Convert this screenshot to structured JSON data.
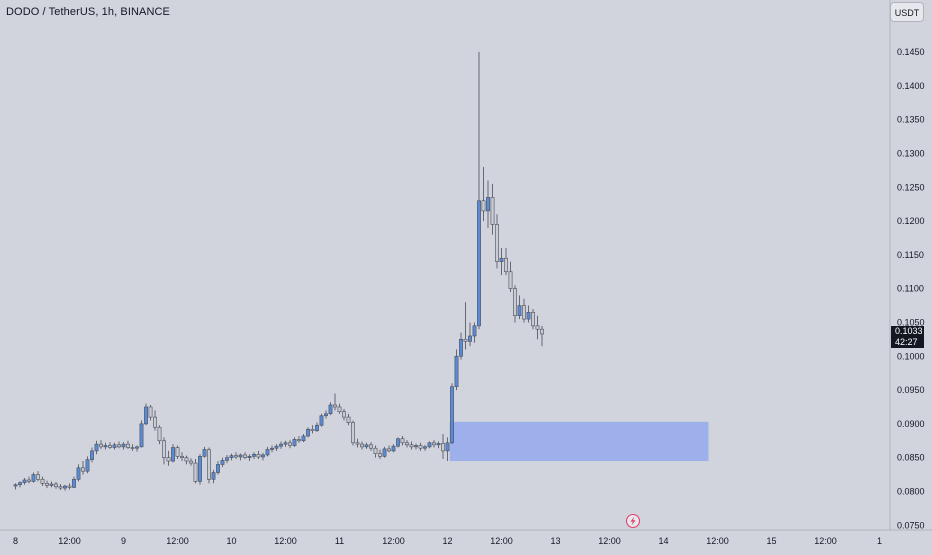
{
  "header": {
    "symbol_title": "DODO / TetherUS, 1h, BINANCE"
  },
  "price_scale": {
    "currency": "USDT"
  },
  "last_price": {
    "value": "0.1033",
    "countdown": "42:27"
  },
  "colors": {
    "background": "#d1d4dc",
    "up_candle": "#5b8ad6",
    "down_candle": "#c9ccd3",
    "wick": "#4a4e5a",
    "zone": "#97acec",
    "axis_text": "#131722"
  },
  "icons": {
    "bottom_marker": "lightning-bolt-icon"
  },
  "chart_data": {
    "type": "candlestick",
    "title": "DODO / TetherUS, 1h, BINANCE",
    "xlabel": "",
    "ylabel": "",
    "ylim": [
      0.0743,
      0.1527
    ],
    "grid": false,
    "y_ticks": [
      "0.0750",
      "0.0800",
      "0.0850",
      "0.0900",
      "0.0950",
      "0.1000",
      "0.1050",
      "0.1100",
      "0.1150",
      "0.1200",
      "0.1250",
      "0.1300",
      "0.1350",
      "0.1400",
      "0.1450"
    ],
    "x_ticks": [
      "8",
      "12:00",
      "9",
      "12:00",
      "10",
      "12:00",
      "11",
      "12:00",
      "12",
      "12:00",
      "13",
      "12:00",
      "14",
      "12:00",
      "15",
      "12:00",
      "1"
    ],
    "x_tick_bars": [
      0,
      12,
      24,
      36,
      48,
      60,
      72,
      84,
      96,
      108,
      120,
      132,
      144,
      156,
      168,
      180,
      192
    ],
    "candles": [
      [
        0.0808,
        0.0812,
        0.0803,
        0.081
      ],
      [
        0.081,
        0.0815,
        0.0806,
        0.0813
      ],
      [
        0.0813,
        0.082,
        0.081,
        0.0817
      ],
      [
        0.0817,
        0.0822,
        0.0812,
        0.0815
      ],
      [
        0.0815,
        0.0828,
        0.0813,
        0.0825
      ],
      [
        0.0825,
        0.083,
        0.0815,
        0.0818
      ],
      [
        0.0818,
        0.0822,
        0.0808,
        0.0812
      ],
      [
        0.0812,
        0.0816,
        0.0805,
        0.0809
      ],
      [
        0.0809,
        0.0815,
        0.0806,
        0.0811
      ],
      [
        0.0811,
        0.0814,
        0.0804,
        0.0807
      ],
      [
        0.0807,
        0.0811,
        0.0802,
        0.0805
      ],
      [
        0.0805,
        0.081,
        0.0801,
        0.0808
      ],
      [
        0.0808,
        0.0812,
        0.0803,
        0.0806
      ],
      [
        0.0806,
        0.0822,
        0.0805,
        0.0818
      ],
      [
        0.0818,
        0.084,
        0.0815,
        0.0835
      ],
      [
        0.0835,
        0.0845,
        0.0825,
        0.083
      ],
      [
        0.083,
        0.0852,
        0.0827,
        0.0847
      ],
      [
        0.0847,
        0.0865,
        0.0843,
        0.086
      ],
      [
        0.086,
        0.0875,
        0.0855,
        0.087
      ],
      [
        0.087,
        0.0876,
        0.0863,
        0.0866
      ],
      [
        0.0866,
        0.0872,
        0.0862,
        0.0868
      ],
      [
        0.0868,
        0.0873,
        0.0863,
        0.0865
      ],
      [
        0.0865,
        0.0872,
        0.0862,
        0.0869
      ],
      [
        0.0869,
        0.0874,
        0.0864,
        0.0866
      ],
      [
        0.0866,
        0.0873,
        0.0862,
        0.087
      ],
      [
        0.087,
        0.0875,
        0.0863,
        0.0865
      ],
      [
        0.0865,
        0.087,
        0.086,
        0.0864
      ],
      [
        0.0864,
        0.0868,
        0.0859,
        0.0866
      ],
      [
        0.0866,
        0.0905,
        0.0865,
        0.09
      ],
      [
        0.09,
        0.093,
        0.0898,
        0.0925
      ],
      [
        0.0925,
        0.0928,
        0.0905,
        0.091
      ],
      [
        0.091,
        0.092,
        0.089,
        0.0895
      ],
      [
        0.0895,
        0.0898,
        0.087,
        0.0875
      ],
      [
        0.0875,
        0.088,
        0.084,
        0.085
      ],
      [
        0.085,
        0.086,
        0.0838,
        0.0845
      ],
      [
        0.0845,
        0.087,
        0.0843,
        0.0865
      ],
      [
        0.0865,
        0.0868,
        0.0848,
        0.0852
      ],
      [
        0.0852,
        0.0858,
        0.0845,
        0.085
      ],
      [
        0.085,
        0.0853,
        0.084,
        0.0845
      ],
      [
        0.0845,
        0.0849,
        0.0838,
        0.0842
      ],
      [
        0.0842,
        0.0848,
        0.0812,
        0.0815
      ],
      [
        0.0815,
        0.0855,
        0.081,
        0.0852
      ],
      [
        0.0852,
        0.0866,
        0.085,
        0.0862
      ],
      [
        0.0862,
        0.0865,
        0.0812,
        0.0818
      ],
      [
        0.0818,
        0.0832,
        0.0812,
        0.0828
      ],
      [
        0.0828,
        0.0845,
        0.0825,
        0.084
      ],
      [
        0.084,
        0.085,
        0.0836,
        0.0846
      ],
      [
        0.0846,
        0.0854,
        0.0842,
        0.085
      ],
      [
        0.085,
        0.0856,
        0.0846,
        0.0853
      ],
      [
        0.0853,
        0.0858,
        0.0848,
        0.0851
      ],
      [
        0.0851,
        0.0856,
        0.0846,
        0.0854
      ],
      [
        0.0854,
        0.0858,
        0.0848,
        0.085
      ],
      [
        0.085,
        0.0855,
        0.0845,
        0.0852
      ],
      [
        0.0852,
        0.0858,
        0.0848,
        0.0855
      ],
      [
        0.0855,
        0.086,
        0.0848,
        0.0851
      ],
      [
        0.0851,
        0.0857,
        0.0846,
        0.0854
      ],
      [
        0.0854,
        0.0866,
        0.0852,
        0.0862
      ],
      [
        0.0862,
        0.0868,
        0.0858,
        0.0864
      ],
      [
        0.0864,
        0.087,
        0.086,
        0.0867
      ],
      [
        0.0867,
        0.0874,
        0.0863,
        0.087
      ],
      [
        0.087,
        0.0875,
        0.0866,
        0.0872
      ],
      [
        0.0872,
        0.0876,
        0.0864,
        0.0868
      ],
      [
        0.0868,
        0.088,
        0.0866,
        0.0877
      ],
      [
        0.0877,
        0.0882,
        0.0872,
        0.0875
      ],
      [
        0.0875,
        0.0885,
        0.0873,
        0.0882
      ],
      [
        0.0882,
        0.0895,
        0.088,
        0.0892
      ],
      [
        0.0892,
        0.0898,
        0.0886,
        0.089
      ],
      [
        0.089,
        0.0902,
        0.0888,
        0.0898
      ],
      [
        0.0898,
        0.0915,
        0.0896,
        0.0912
      ],
      [
        0.0912,
        0.092,
        0.0908,
        0.0915
      ],
      [
        0.0915,
        0.0932,
        0.0913,
        0.0928
      ],
      [
        0.0928,
        0.0945,
        0.092,
        0.0925
      ],
      [
        0.0925,
        0.093,
        0.0915,
        0.0918
      ],
      [
        0.0918,
        0.0922,
        0.0905,
        0.091
      ],
      [
        0.091,
        0.0915,
        0.0898,
        0.0902
      ],
      [
        0.0902,
        0.0905,
        0.0868,
        0.0872
      ],
      [
        0.0872,
        0.0878,
        0.0865,
        0.087
      ],
      [
        0.087,
        0.0874,
        0.0862,
        0.0866
      ],
      [
        0.0866,
        0.0872,
        0.0863,
        0.0869
      ],
      [
        0.0869,
        0.0873,
        0.086,
        0.0864
      ],
      [
        0.0864,
        0.0868,
        0.085,
        0.0856
      ],
      [
        0.0856,
        0.0862,
        0.0848,
        0.0852
      ],
      [
        0.0852,
        0.0866,
        0.085,
        0.0863
      ],
      [
        0.0863,
        0.0868,
        0.0858,
        0.086
      ],
      [
        0.086,
        0.087,
        0.0858,
        0.0867
      ],
      [
        0.0867,
        0.088,
        0.0865,
        0.0878
      ],
      [
        0.0878,
        0.0882,
        0.0868,
        0.0872
      ],
      [
        0.0872,
        0.0876,
        0.0865,
        0.0869
      ],
      [
        0.0869,
        0.0874,
        0.0862,
        0.0866
      ],
      [
        0.0866,
        0.0871,
        0.0862,
        0.0868
      ],
      [
        0.0868,
        0.0872,
        0.086,
        0.0864
      ],
      [
        0.0864,
        0.0869,
        0.086,
        0.0866
      ],
      [
        0.0866,
        0.0874,
        0.0864,
        0.0872
      ],
      [
        0.0872,
        0.0876,
        0.0865,
        0.0869
      ],
      [
        0.0869,
        0.0874,
        0.0864,
        0.0871
      ],
      [
        0.0871,
        0.0885,
        0.0848,
        0.086
      ],
      [
        0.086,
        0.088,
        0.0845,
        0.0872
      ],
      [
        0.0872,
        0.096,
        0.087,
        0.0955
      ],
      [
        0.0955,
        0.101,
        0.095,
        0.1
      ],
      [
        0.1,
        0.1035,
        0.0995,
        0.1025
      ],
      [
        0.1025,
        0.108,
        0.101,
        0.1022
      ],
      [
        0.1022,
        0.105,
        0.1015,
        0.103
      ],
      [
        0.103,
        0.105,
        0.102,
        0.1045
      ],
      [
        0.1045,
        0.145,
        0.104,
        0.123
      ],
      [
        0.123,
        0.128,
        0.12,
        0.1215
      ],
      [
        0.1215,
        0.126,
        0.119,
        0.1235
      ],
      [
        0.1235,
        0.1255,
        0.118,
        0.1195
      ],
      [
        0.1195,
        0.121,
        0.113,
        0.114
      ],
      [
        0.114,
        0.116,
        0.112,
        0.1145
      ],
      [
        0.1145,
        0.116,
        0.112,
        0.1125
      ],
      [
        0.1125,
        0.114,
        0.1095,
        0.11
      ],
      [
        0.11,
        0.1105,
        0.105,
        0.106
      ],
      [
        0.106,
        0.109,
        0.1055,
        0.1075
      ],
      [
        0.1075,
        0.1085,
        0.105,
        0.1055
      ],
      [
        0.1055,
        0.1075,
        0.105,
        0.1065
      ],
      [
        0.1065,
        0.107,
        0.104,
        0.1045
      ],
      [
        0.1045,
        0.106,
        0.1025,
        0.104
      ],
      [
        0.104,
        0.1045,
        0.1015,
        0.1033
      ]
    ],
    "zone": {
      "bar_start": 97,
      "bar_end": 154,
      "price_low": 0.0845,
      "price_high": 0.0903
    }
  }
}
